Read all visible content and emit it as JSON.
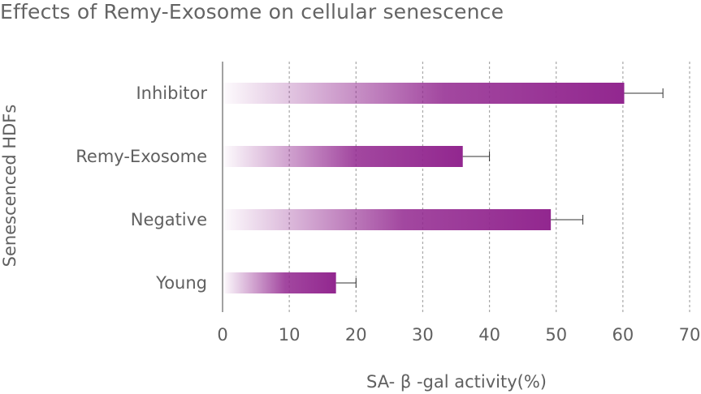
{
  "chart_data": {
    "type": "bar",
    "orientation": "horizontal",
    "title": "Effects of Remy-Exosome on cellular senescence",
    "xlabel": "SA- β -gal activity(%)",
    "ylabel": "Senescenced HDFs",
    "categories": [
      "Inhibitor",
      "Remy-Exosome",
      "Negative",
      "Young"
    ],
    "values": [
      60.2,
      36,
      49.2,
      17
    ],
    "error_upper": [
      66,
      40,
      54,
      20
    ],
    "xlim": [
      0,
      70
    ],
    "xticks": [
      "0",
      "10",
      "20",
      "30",
      "40",
      "50",
      "60",
      "70"
    ],
    "grid": "vertical dashed",
    "bar_color": "#92278f"
  }
}
